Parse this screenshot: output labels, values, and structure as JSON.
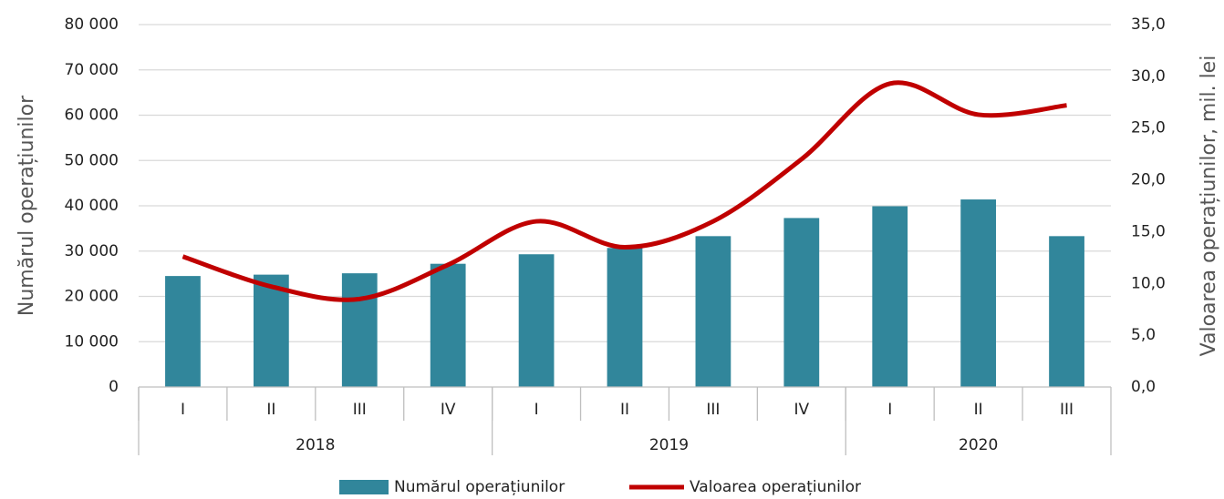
{
  "chart_data": {
    "type": "bar_line",
    "categories": [
      "I",
      "II",
      "III",
      "IV",
      "I",
      "II",
      "III",
      "IV",
      "I",
      "II",
      "III"
    ],
    "groups": [
      {
        "name": "2018",
        "size": 4
      },
      {
        "name": "2019",
        "size": 4
      },
      {
        "name": "2020",
        "size": 3
      }
    ],
    "series": [
      {
        "name": "Numărul operațiunilor",
        "type": "bar",
        "color": "#31869b",
        "values": [
          24500,
          24800,
          25100,
          27200,
          29300,
          30700,
          33300,
          37300,
          39900,
          41400,
          33300
        ]
      },
      {
        "name": "Valoarea operațiunilor",
        "type": "line",
        "axis": "y2",
        "color": "#c00000",
        "values": [
          12.6,
          9.7,
          8.5,
          11.8,
          16.0,
          13.5,
          16.0,
          22.0,
          29.3,
          26.3,
          27.2
        ]
      }
    ],
    "y_label": "Numărul operațiunilor",
    "y2_label": "Valoarea operațiunilor, mil. lei",
    "ylim": [
      0,
      80000
    ],
    "yticks": [
      0,
      {
        "value": 10000,
        "label": "10 000"
      },
      {
        "value": 20000,
        "label": "20 000"
      },
      {
        "value": 30000,
        "label": "30 000"
      },
      {
        "value": 40000,
        "label": "40 000"
      },
      {
        "value": 50000,
        "label": "50 000"
      },
      {
        "value": 60000,
        "label": "60 000"
      },
      {
        "value": 70000,
        "label": "70 000"
      },
      {
        "value": 80000,
        "label": "80 000"
      }
    ],
    "y2lim": [
      0,
      35
    ],
    "y2ticks": [
      {
        "value": 0,
        "label": "0,0"
      },
      {
        "value": 5,
        "label": "5,0"
      },
      {
        "value": 10,
        "label": "10,0"
      },
      {
        "value": 15,
        "label": "15,0"
      },
      {
        "value": 20,
        "label": "20,0"
      },
      {
        "value": 25,
        "label": "25,0"
      },
      {
        "value": 30,
        "label": "30,0"
      },
      {
        "value": 35,
        "label": "35,0"
      }
    ],
    "grid": true,
    "legend": "bottom"
  }
}
